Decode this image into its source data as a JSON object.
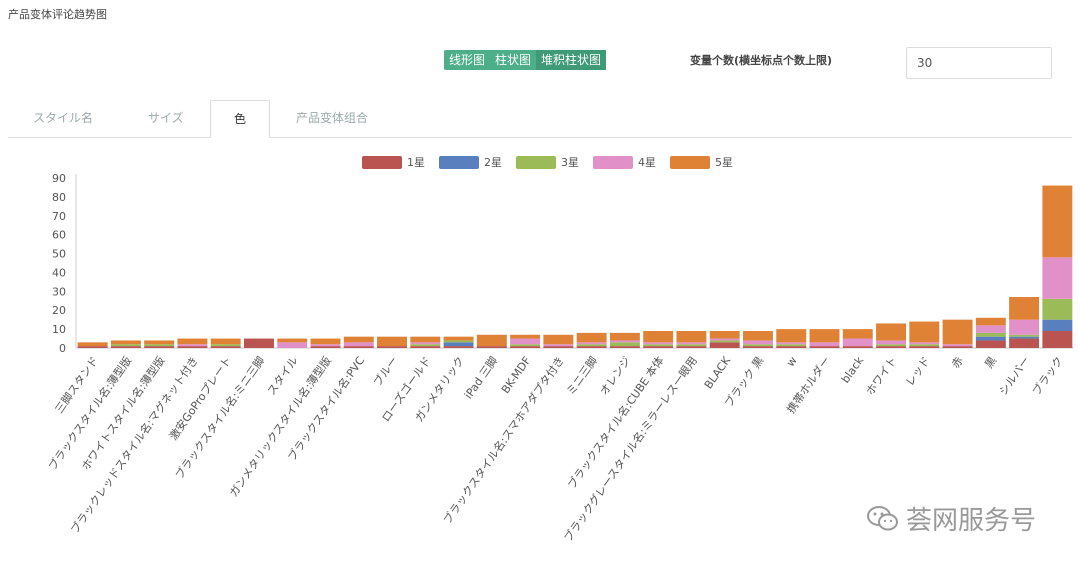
{
  "page": {
    "title": "产品变体评论趋势图"
  },
  "toolbar": {
    "modes": [
      "线形图",
      "柱状图",
      "堆积柱状图"
    ],
    "active_mode": "堆积柱状图",
    "var_label": "变量个数(横坐标点个数上限)",
    "var_value": "30"
  },
  "tabs": [
    {
      "label": "スタイル名",
      "active": false
    },
    {
      "label": "サイズ",
      "active": false
    },
    {
      "label": "色",
      "active": true
    },
    {
      "label": "产品变体组合",
      "active": false
    }
  ],
  "watermark": {
    "text": "荟网服务号"
  },
  "chart_data": {
    "type": "bar",
    "stacked": true,
    "ylim": [
      0,
      90
    ],
    "yticks": [
      0,
      10,
      20,
      30,
      40,
      50,
      60,
      70,
      80,
      90
    ],
    "grid": false,
    "legend_position": "top-center",
    "categories": [
      "三脚スタンド",
      "ブラックスタイル名:薄型版",
      "ホワイトスタイル名:薄型版",
      "ブラックレッドスタイル名:マグネット付き",
      "激安GoProプレート",
      "ブラックスタイル名:ミニ三脚",
      "スタイル",
      "ガンメタリックスタイル名:薄型版",
      "ブラックスタイル名:PVC",
      "ブルー",
      "ローズゴールド",
      "ガンメタリック",
      "iPad 三脚",
      "BK-MDF",
      "ブラックスタイル名:スマホアダプタ付き",
      "ミニ三脚",
      "オレンジ",
      "ブラックスタイル名:CUBE 本体",
      "ブラックグレースタイル名:ミラーレス一眼用",
      "BLACK",
      "ブラック 黒",
      "w",
      "携帯ホルダー",
      "black",
      "ホワイト",
      "レッド",
      "赤",
      "黒",
      "シルバー",
      "ブラック"
    ],
    "series": [
      {
        "name": "1星",
        "color": "#b95450",
        "values": [
          1,
          1,
          1,
          1,
          1,
          5,
          0,
          1,
          1,
          1,
          1,
          1,
          1,
          1,
          1,
          1,
          1,
          1,
          1,
          3,
          1,
          1,
          1,
          1,
          1,
          1,
          1,
          4,
          5,
          9
        ]
      },
      {
        "name": "2星",
        "color": "#5a7fbf",
        "values": [
          0,
          0,
          0,
          0,
          0,
          0,
          0,
          0,
          0,
          0,
          0,
          2,
          0,
          0,
          0,
          0,
          0,
          0,
          0,
          0,
          0,
          0,
          0,
          0,
          0,
          0,
          0,
          2,
          1,
          6
        ]
      },
      {
        "name": "3星",
        "color": "#9bbb59",
        "values": [
          0,
          1,
          1,
          0,
          1,
          0,
          0,
          0,
          0,
          0,
          1,
          1,
          0,
          1,
          0,
          1,
          2,
          1,
          1,
          1,
          1,
          1,
          0,
          0,
          1,
          1,
          0,
          2,
          1,
          11
        ]
      },
      {
        "name": "4星",
        "color": "#e291c8",
        "values": [
          0,
          0,
          0,
          1,
          0,
          0,
          3,
          1,
          2,
          0,
          1,
          0,
          0,
          3,
          1,
          1,
          1,
          1,
          1,
          1,
          2,
          1,
          2,
          4,
          2,
          1,
          1,
          4,
          8,
          22
        ]
      },
      {
        "name": "5星",
        "color": "#e08236",
        "values": [
          2,
          2,
          2,
          3,
          3,
          0,
          2,
          3,
          3,
          5,
          3,
          2,
          6,
          2,
          5,
          5,
          4,
          6,
          6,
          4,
          5,
          7,
          7,
          5,
          9,
          11,
          13,
          4,
          12,
          38
        ]
      }
    ]
  }
}
